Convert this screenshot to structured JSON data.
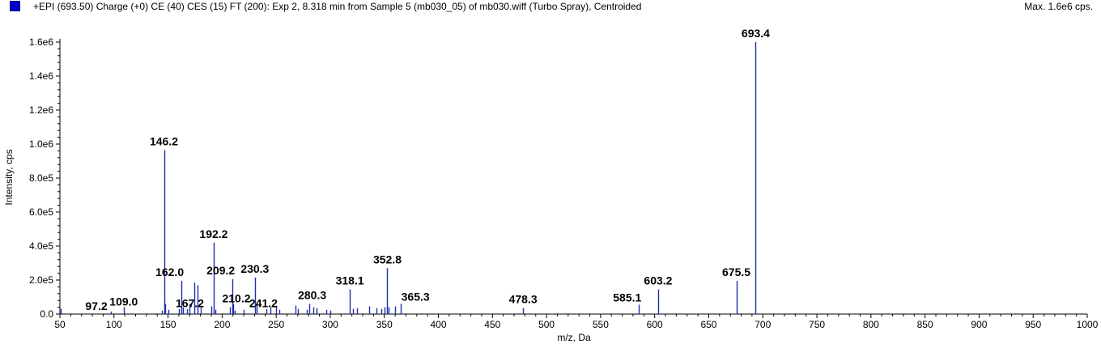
{
  "header": {
    "title": "+EPI (693.50) Charge (+0) CE (40) CES (15) FT (200): Exp 2, 8.318 min from Sample 5 (mb030_05) of mb030.wiff (Turbo Spray), Centroided",
    "max_label": "Max. 1.6e6 cps."
  },
  "colors": {
    "peak": "#1f2fa8",
    "swatch": "#0000cc",
    "axis": "#000000"
  },
  "chart_data": {
    "type": "bar",
    "xlabel": "m/z, Da",
    "ylabel": "Intensity, cps",
    "xlim": [
      50,
      1000
    ],
    "ylim": [
      0,
      1600000
    ],
    "x_ticks": [
      50,
      100,
      150,
      200,
      250,
      300,
      350,
      400,
      450,
      500,
      550,
      600,
      650,
      700,
      750,
      800,
      850,
      900,
      950,
      1000
    ],
    "y_ticks": [
      {
        "value": 0,
        "label": "0.0"
      },
      {
        "value": 200000,
        "label": "2.0e5"
      },
      {
        "value": 400000,
        "label": "4.0e5"
      },
      {
        "value": 600000,
        "label": "6.0e5"
      },
      {
        "value": 800000,
        "label": "8.0e5"
      },
      {
        "value": 1000000,
        "label": "1.0e6"
      },
      {
        "value": 1200000,
        "label": "1.2e6"
      },
      {
        "value": 1400000,
        "label": "1.4e6"
      },
      {
        "value": 1600000,
        "label": "1.6e6"
      }
    ],
    "peaks": [
      {
        "mz": 51.0,
        "intensity": 30000
      },
      {
        "mz": 97.2,
        "intensity": 15000
      },
      {
        "mz": 109.0,
        "intensity": 40000
      },
      {
        "mz": 144.0,
        "intensity": 20000
      },
      {
        "mz": 146.2,
        "intensity": 965000
      },
      {
        "mz": 147.5,
        "intensity": 60000
      },
      {
        "mz": 150.0,
        "intensity": 25000
      },
      {
        "mz": 160.0,
        "intensity": 30000
      },
      {
        "mz": 162.0,
        "intensity": 195000
      },
      {
        "mz": 164.0,
        "intensity": 40000
      },
      {
        "mz": 167.2,
        "intensity": 30000
      },
      {
        "mz": 170.0,
        "intensity": 60000
      },
      {
        "mz": 174.0,
        "intensity": 185000
      },
      {
        "mz": 177.0,
        "intensity": 170000
      },
      {
        "mz": 180.0,
        "intensity": 40000
      },
      {
        "mz": 190.0,
        "intensity": 45000
      },
      {
        "mz": 192.2,
        "intensity": 420000
      },
      {
        "mz": 194.0,
        "intensity": 25000
      },
      {
        "mz": 207.0,
        "intensity": 40000
      },
      {
        "mz": 209.2,
        "intensity": 205000
      },
      {
        "mz": 210.2,
        "intensity": 60000
      },
      {
        "mz": 212.0,
        "intensity": 20000
      },
      {
        "mz": 220.0,
        "intensity": 25000
      },
      {
        "mz": 230.3,
        "intensity": 215000
      },
      {
        "mz": 232.0,
        "intensity": 50000
      },
      {
        "mz": 241.2,
        "intensity": 30000
      },
      {
        "mz": 245.0,
        "intensity": 40000
      },
      {
        "mz": 250.0,
        "intensity": 45000
      },
      {
        "mz": 253.0,
        "intensity": 25000
      },
      {
        "mz": 268.0,
        "intensity": 50000
      },
      {
        "mz": 270.0,
        "intensity": 30000
      },
      {
        "mz": 278.0,
        "intensity": 25000
      },
      {
        "mz": 280.3,
        "intensity": 60000
      },
      {
        "mz": 284.0,
        "intensity": 40000
      },
      {
        "mz": 287.0,
        "intensity": 35000
      },
      {
        "mz": 296.0,
        "intensity": 25000
      },
      {
        "mz": 300.0,
        "intensity": 20000
      },
      {
        "mz": 318.1,
        "intensity": 145000
      },
      {
        "mz": 321.0,
        "intensity": 30000
      },
      {
        "mz": 325.0,
        "intensity": 35000
      },
      {
        "mz": 336.0,
        "intensity": 45000
      },
      {
        "mz": 343.0,
        "intensity": 35000
      },
      {
        "mz": 347.0,
        "intensity": 30000
      },
      {
        "mz": 350.0,
        "intensity": 40000
      },
      {
        "mz": 352.8,
        "intensity": 270000
      },
      {
        "mz": 354.0,
        "intensity": 40000
      },
      {
        "mz": 360.0,
        "intensity": 45000
      },
      {
        "mz": 365.3,
        "intensity": 60000
      },
      {
        "mz": 478.3,
        "intensity": 35000
      },
      {
        "mz": 585.1,
        "intensity": 55000
      },
      {
        "mz": 603.2,
        "intensity": 145000
      },
      {
        "mz": 675.5,
        "intensity": 195000
      },
      {
        "mz": 693.4,
        "intensity": 1600000
      }
    ],
    "annotations": [
      {
        "text": "97.2",
        "mz": 97.2
      },
      {
        "text": "109.0",
        "mz": 109.0
      },
      {
        "text": "146.2",
        "mz": 146.2
      },
      {
        "text": "162.0",
        "mz": 162.0
      },
      {
        "text": "167.2",
        "mz": 167.2
      },
      {
        "text": "192.2",
        "mz": 192.2
      },
      {
        "text": "209.2",
        "mz": 209.2
      },
      {
        "text": "210.2",
        "mz": 210.2
      },
      {
        "text": "230.3",
        "mz": 230.3
      },
      {
        "text": "241.2",
        "mz": 241.2
      },
      {
        "text": "280.3",
        "mz": 280.3
      },
      {
        "text": "318.1",
        "mz": 318.1
      },
      {
        "text": "352.8",
        "mz": 352.8
      },
      {
        "text": "365.3",
        "mz": 365.3
      },
      {
        "text": "478.3",
        "mz": 478.3
      },
      {
        "text": "585.1",
        "mz": 585.1
      },
      {
        "text": "603.2",
        "mz": 603.2
      },
      {
        "text": "675.5",
        "mz": 675.5
      },
      {
        "text": "693.4",
        "mz": 693.4
      }
    ]
  }
}
